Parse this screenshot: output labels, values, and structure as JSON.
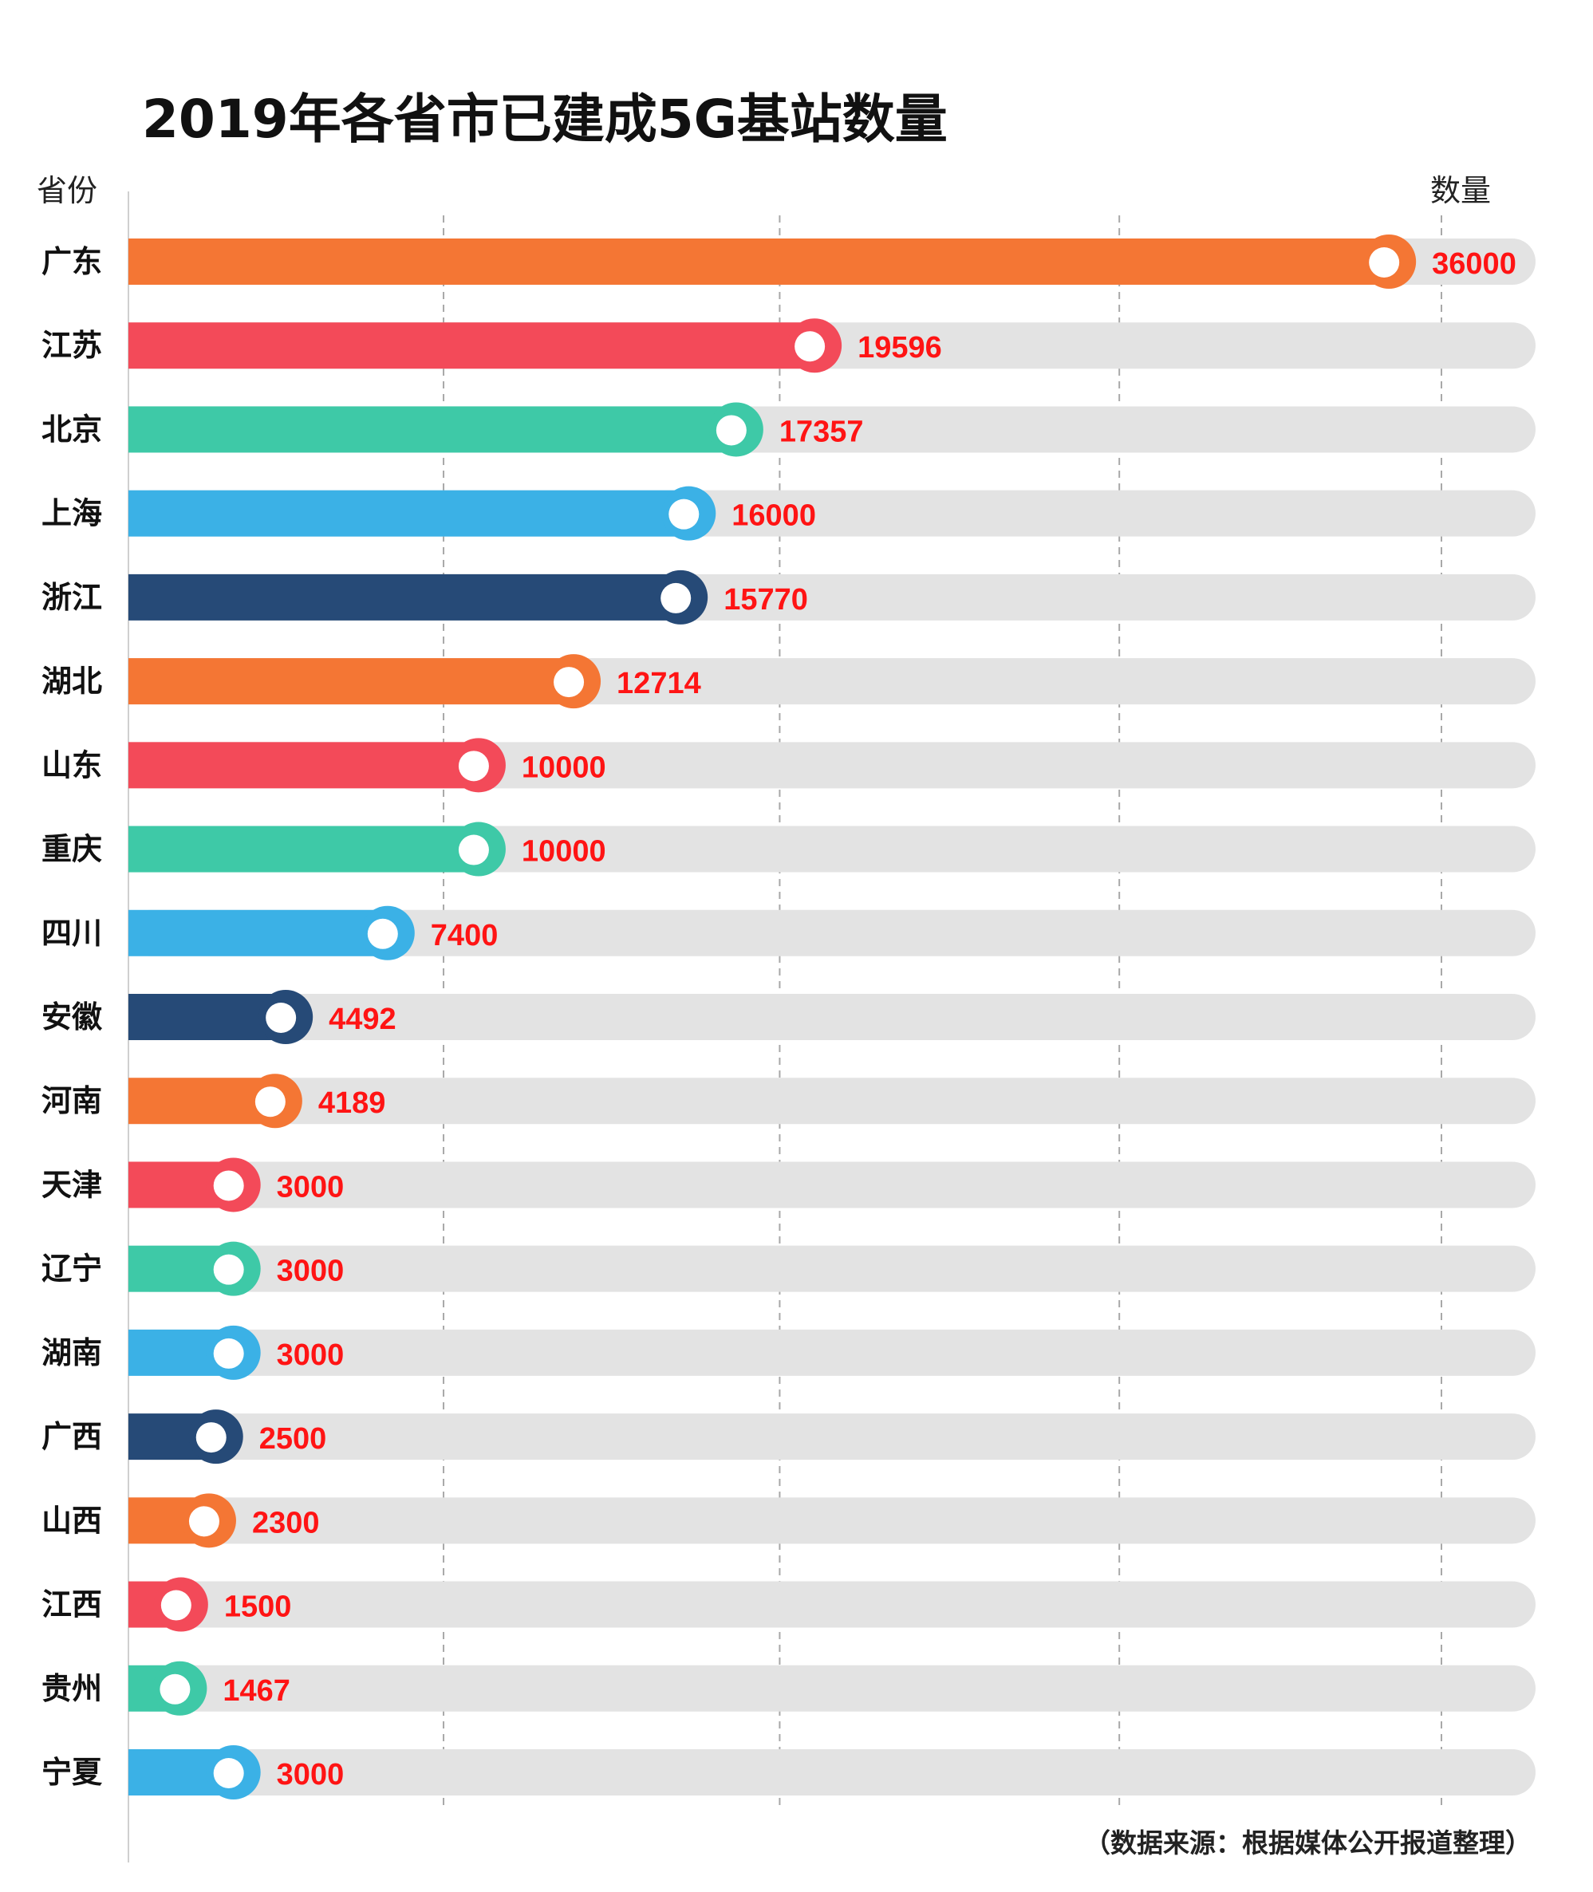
{
  "chart_data": {
    "type": "bar",
    "orientation": "horizontal",
    "title": "2019年各省市已建成5G基站数量",
    "ylabel": "省份",
    "xlabel": "数量",
    "source": "（数据来源：根据媒体公开报道整理）",
    "xlim": [
      0,
      37500
    ],
    "gridlines_at": [
      9000,
      18600,
      28300,
      37500
    ],
    "grid": "dashed vertical",
    "categories": [
      "广东",
      "江苏",
      "北京",
      "上海",
      "浙江",
      "湖北",
      "山东",
      "重庆",
      "四川",
      "安徽",
      "河南",
      "天津",
      "辽宁",
      "湖南",
      "广西",
      "山西",
      "江西",
      "贵州",
      "宁夏"
    ],
    "values": [
      36000,
      19596,
      17357,
      16000,
      15770,
      12714,
      10000,
      10000,
      7400,
      4492,
      4189,
      3000,
      3000,
      3000,
      2500,
      2300,
      1500,
      1467,
      3000
    ],
    "value_labels": [
      "36000",
      "19596",
      "17357",
      "16000",
      "15770",
      "12714",
      "10000",
      "10000",
      "7400",
      "4492",
      "4189",
      "3000",
      "3000",
      "3000",
      "2500",
      "2300",
      "1500",
      "1467",
      "3000"
    ],
    "palette": [
      "#f47634",
      "#f34a59",
      "#3ec9a7",
      "#3bb1e6",
      "#264a77"
    ],
    "track_color": "#e3e3e3",
    "label_color": "#ff1414"
  }
}
